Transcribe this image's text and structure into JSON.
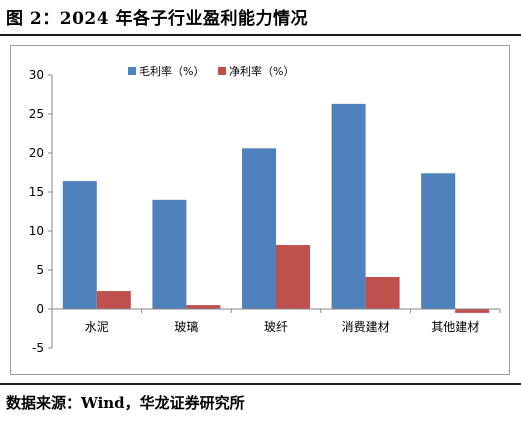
{
  "figure": {
    "title": "图 2：2024 年各子行业盈利能力情况",
    "source": "数据来源：Wind，华龙证券研究所"
  },
  "colors": {
    "gross_margin": "#4f81bd",
    "net_margin": "#c0504d",
    "axis": "#868686"
  },
  "chart_data": {
    "type": "bar",
    "categories": [
      "水泥",
      "玻璃",
      "玻纤",
      "消费建材",
      "其他建材"
    ],
    "series": [
      {
        "name": "毛利率（%）",
        "values": [
          16.4,
          14.0,
          20.6,
          26.3,
          17.4
        ]
      },
      {
        "name": "净利率（%）",
        "values": [
          2.3,
          0.5,
          8.2,
          4.1,
          -0.5
        ]
      }
    ],
    "ylim": [
      -5,
      30
    ],
    "yticks": [
      "-5",
      "0",
      "5",
      "10",
      "15",
      "20",
      "25",
      "30"
    ],
    "legend_position": "top-center",
    "grid": false
  }
}
